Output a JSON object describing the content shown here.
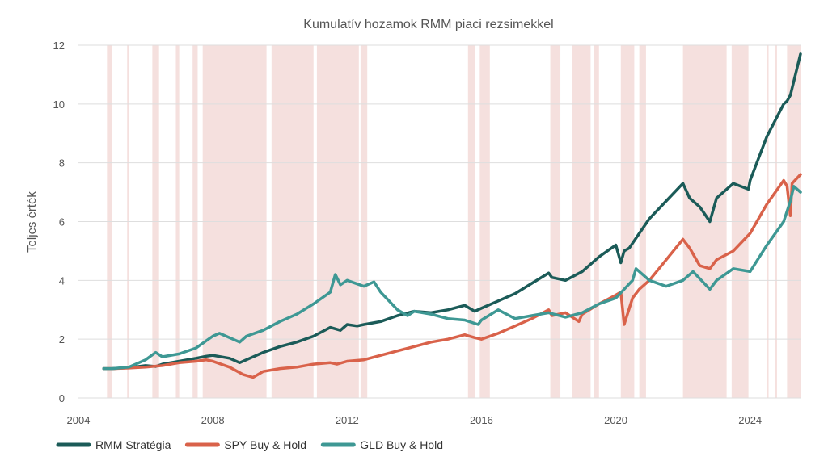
{
  "chart_data": {
    "type": "line",
    "title": "Kumulatív hozamok RMM piaci rezsimekkel",
    "xlabel": "",
    "ylabel": "Teljes érték",
    "xlim": [
      2004.0,
      2025.5
    ],
    "ylim": [
      0,
      12
    ],
    "x_ticks": [
      "2004",
      "2008",
      "2012",
      "2016",
      "2020",
      "2024"
    ],
    "y_ticks": [
      "0",
      "2",
      "4",
      "6",
      "8",
      "10",
      "12"
    ],
    "grid": "horizontal",
    "legend_position": "bottom-left",
    "shaded_regime_periods": [
      [
        2004.85,
        2005.0
      ],
      [
        2005.45,
        2005.5
      ],
      [
        2006.2,
        2006.4
      ],
      [
        2006.9,
        2007.0
      ],
      [
        2007.4,
        2007.55
      ],
      [
        2007.7,
        2009.6
      ],
      [
        2009.75,
        2011.0
      ],
      [
        2011.1,
        2012.35
      ],
      [
        2012.4,
        2012.6
      ],
      [
        2015.6,
        2015.8
      ],
      [
        2015.95,
        2016.25
      ],
      [
        2018.05,
        2018.35
      ],
      [
        2018.7,
        2019.25
      ],
      [
        2019.35,
        2019.5
      ],
      [
        2020.15,
        2020.55
      ],
      [
        2020.7,
        2020.9
      ],
      [
        2022.0,
        2023.3
      ],
      [
        2023.45,
        2023.95
      ],
      [
        2024.5,
        2024.55
      ],
      [
        2024.75,
        2024.8
      ],
      [
        2025.1,
        2025.5
      ]
    ],
    "regime_color": "#f2d6d3",
    "series": [
      {
        "name": "RMM Stratégia",
        "color": "#1b5b58",
        "x": [
          2004.75,
          2005.0,
          2005.5,
          2006.0,
          2006.3,
          2006.5,
          2007.0,
          2007.5,
          2007.8,
          2008.0,
          2008.5,
          2008.8,
          2009.0,
          2009.5,
          2010.0,
          2010.5,
          2011.0,
          2011.5,
          2011.8,
          2012.0,
          2012.3,
          2012.5,
          2013.0,
          2013.5,
          2014.0,
          2014.5,
          2015.0,
          2015.5,
          2015.8,
          2016.0,
          2016.5,
          2017.0,
          2017.5,
          2018.0,
          2018.1,
          2018.5,
          2019.0,
          2019.5,
          2020.0,
          2020.15,
          2020.25,
          2020.4,
          2020.7,
          2021.0,
          2021.5,
          2022.0,
          2022.2,
          2022.5,
          2022.8,
          2023.0,
          2023.5,
          2023.95,
          2024.0,
          2024.5,
          2025.0,
          2025.1,
          2025.2,
          2025.5
        ],
        "values": [
          1.0,
          1.0,
          1.03,
          1.1,
          1.07,
          1.15,
          1.25,
          1.35,
          1.42,
          1.45,
          1.35,
          1.2,
          1.3,
          1.55,
          1.75,
          1.9,
          2.1,
          2.4,
          2.3,
          2.5,
          2.45,
          2.5,
          2.6,
          2.8,
          2.95,
          2.9,
          3.0,
          3.15,
          2.95,
          3.05,
          3.3,
          3.55,
          3.9,
          4.25,
          4.1,
          4.0,
          4.3,
          4.8,
          5.2,
          4.6,
          5.0,
          5.1,
          5.6,
          6.1,
          6.7,
          7.3,
          6.8,
          6.5,
          6.0,
          6.8,
          7.3,
          7.1,
          7.4,
          8.9,
          10.0,
          10.1,
          10.3,
          11.7
        ]
      },
      {
        "name": "SPY Buy & Hold",
        "color": "#d9624a",
        "x": [
          2004.75,
          2005.0,
          2005.5,
          2006.0,
          2006.5,
          2007.0,
          2007.5,
          2007.8,
          2008.0,
          2008.5,
          2008.9,
          2009.2,
          2009.5,
          2010.0,
          2010.5,
          2011.0,
          2011.5,
          2011.7,
          2012.0,
          2012.5,
          2013.0,
          2013.5,
          2014.0,
          2014.5,
          2015.0,
          2015.5,
          2015.8,
          2016.0,
          2016.5,
          2017.0,
          2017.5,
          2018.0,
          2018.1,
          2018.5,
          2018.9,
          2019.0,
          2019.5,
          2020.0,
          2020.15,
          2020.25,
          2020.5,
          2020.7,
          2021.0,
          2021.5,
          2022.0,
          2022.2,
          2022.5,
          2022.8,
          2023.0,
          2023.5,
          2024.0,
          2024.5,
          2025.0,
          2025.1,
          2025.2,
          2025.25,
          2025.5
        ],
        "values": [
          1.0,
          1.0,
          1.02,
          1.05,
          1.1,
          1.2,
          1.25,
          1.3,
          1.25,
          1.05,
          0.8,
          0.7,
          0.9,
          1.0,
          1.05,
          1.15,
          1.2,
          1.15,
          1.25,
          1.3,
          1.45,
          1.6,
          1.75,
          1.9,
          2.0,
          2.15,
          2.05,
          2.0,
          2.2,
          2.45,
          2.7,
          3.0,
          2.8,
          2.9,
          2.6,
          2.85,
          3.2,
          3.5,
          3.6,
          2.5,
          3.4,
          3.7,
          4.0,
          4.7,
          5.4,
          5.1,
          4.5,
          4.4,
          4.7,
          5.0,
          5.6,
          6.6,
          7.4,
          7.2,
          6.2,
          7.3,
          7.6
        ]
      },
      {
        "name": "GLD Buy & Hold",
        "color": "#3e9894",
        "x": [
          2004.75,
          2005.0,
          2005.5,
          2006.0,
          2006.3,
          2006.5,
          2007.0,
          2007.5,
          2008.0,
          2008.2,
          2008.8,
          2009.0,
          2009.5,
          2010.0,
          2010.5,
          2011.0,
          2011.5,
          2011.65,
          2011.8,
          2012.0,
          2012.5,
          2012.8,
          2013.0,
          2013.5,
          2013.8,
          2014.0,
          2014.5,
          2015.0,
          2015.5,
          2015.9,
          2016.0,
          2016.5,
          2017.0,
          2017.5,
          2018.0,
          2018.5,
          2019.0,
          2019.5,
          2020.0,
          2020.5,
          2020.6,
          2021.0,
          2021.5,
          2022.0,
          2022.3,
          2022.8,
          2023.0,
          2023.5,
          2024.0,
          2024.5,
          2025.0,
          2025.2,
          2025.3,
          2025.5
        ],
        "values": [
          1.0,
          1.0,
          1.05,
          1.3,
          1.55,
          1.4,
          1.5,
          1.7,
          2.1,
          2.2,
          1.9,
          2.1,
          2.3,
          2.6,
          2.85,
          3.2,
          3.6,
          4.2,
          3.85,
          4.0,
          3.8,
          3.95,
          3.6,
          3.0,
          2.8,
          2.95,
          2.85,
          2.7,
          2.65,
          2.5,
          2.65,
          3.0,
          2.7,
          2.8,
          2.9,
          2.75,
          2.9,
          3.2,
          3.4,
          4.0,
          4.4,
          4.0,
          3.8,
          4.0,
          4.3,
          3.7,
          4.0,
          4.4,
          4.3,
          5.2,
          6.0,
          6.7,
          7.2,
          7.0
        ]
      }
    ]
  }
}
